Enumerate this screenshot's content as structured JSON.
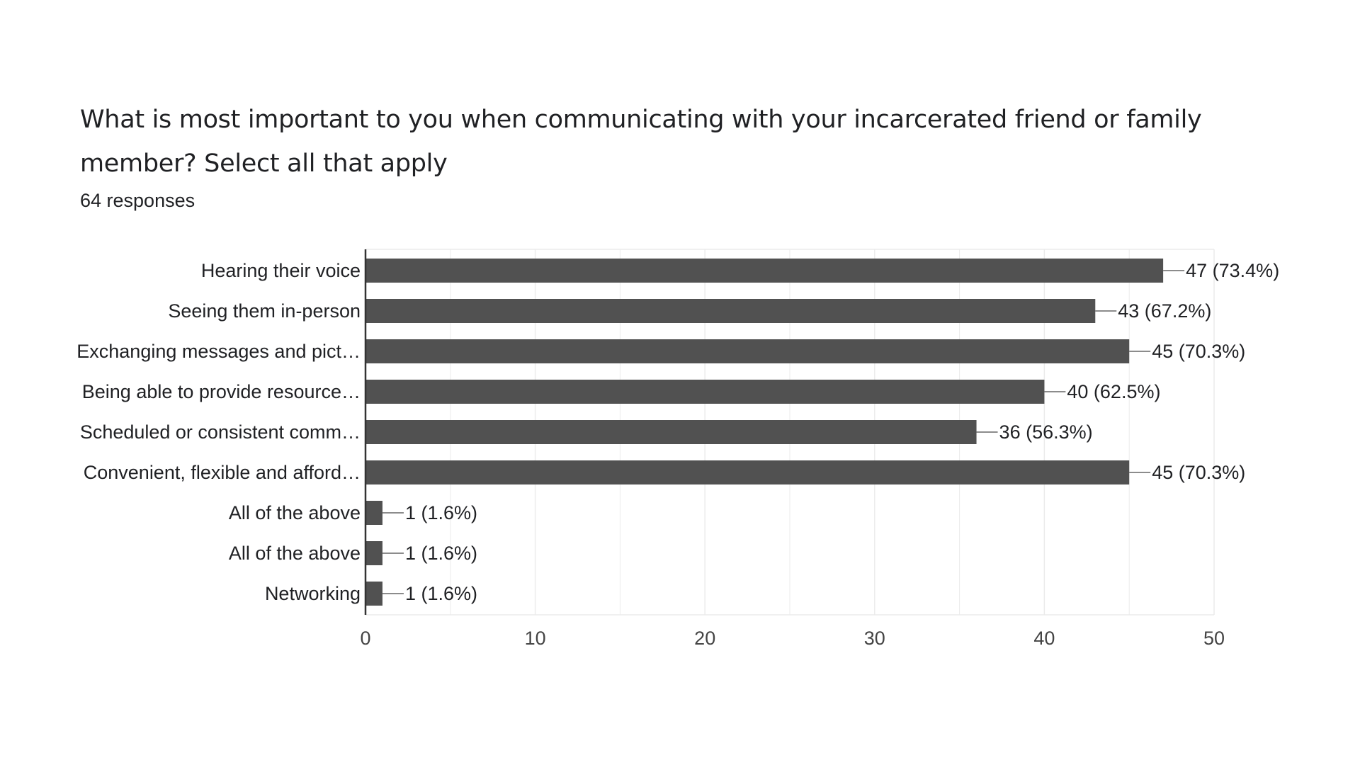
{
  "header": {
    "title": "What is most important to you when communicating with your incarcerated friend or family member? Select all that apply",
    "responses": "64 responses"
  },
  "colors": {
    "bar": "#515151",
    "grid": "#ebebeb",
    "axis": "#333333",
    "text": "#202124",
    "tick_text": "#444444",
    "leader": "#666666"
  },
  "chart_data": {
    "type": "bar",
    "orientation": "horizontal",
    "categories": [
      "Hearing their voice",
      "Seeing them in-person",
      "Exchanging messages and pict…",
      "Being able to provide resource…",
      "Scheduled or consistent comm…",
      "Convenient, flexible and afford…",
      "All of the above",
      "All of the above",
      "Networking"
    ],
    "values": [
      47,
      43,
      45,
      40,
      36,
      45,
      1,
      1,
      1
    ],
    "data_labels": [
      "47 (73.4%)",
      "43 (67.2%)",
      "45 (70.3%)",
      "40 (62.5%)",
      "36 (56.3%)",
      "45 (70.3%)",
      "1 (1.6%)",
      "1 (1.6%)",
      "1 (1.6%)"
    ],
    "xlim": [
      0,
      50
    ],
    "xticks": [
      0,
      10,
      20,
      30,
      40,
      50
    ],
    "grid": true,
    "legend": "none"
  }
}
